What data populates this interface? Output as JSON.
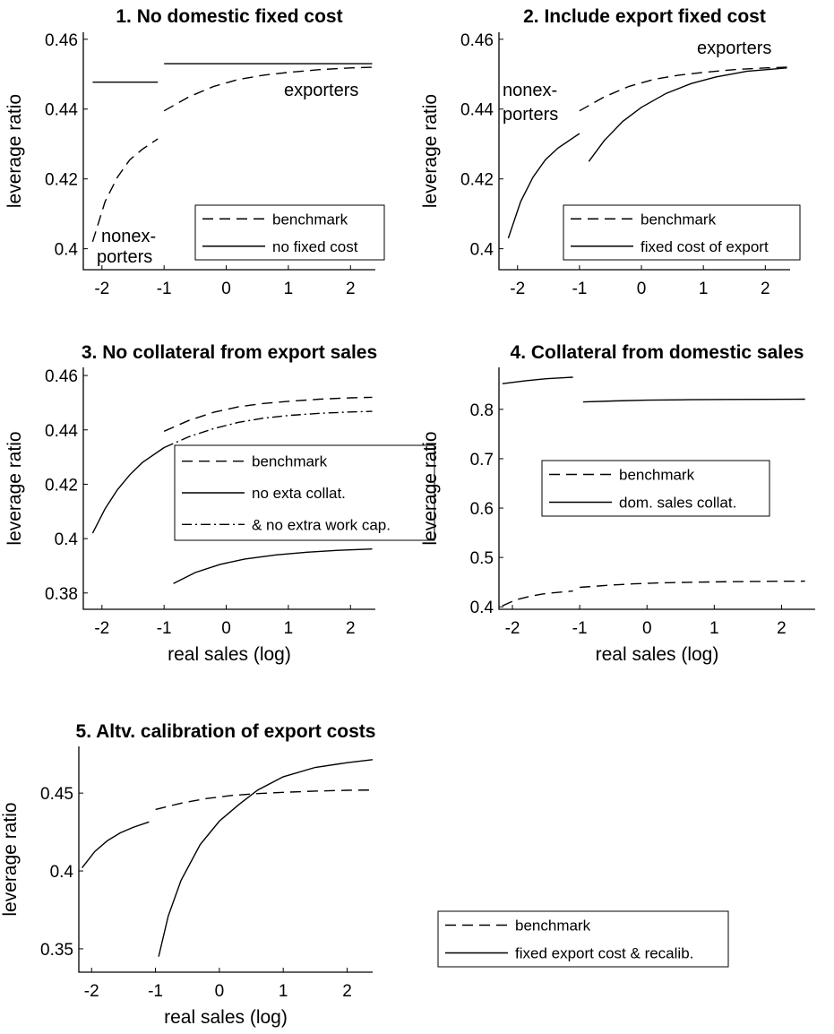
{
  "chart_data": [
    {
      "type": "line",
      "title": "1. No domestic fixed cost",
      "xlabel": "",
      "ylabel": "leverage ratio",
      "xlim": [
        -2.3,
        2.4
      ],
      "ylim": [
        0.394,
        0.462
      ],
      "xticks": [
        -2,
        -1,
        0,
        1,
        2
      ],
      "yticks": [
        0.4,
        0.42,
        0.44,
        0.46
      ],
      "ytick_labels": [
        "0.4",
        "0.42",
        "0.44",
        "0.46"
      ],
      "annotations": [
        {
          "text": "exporters",
          "x": 1.05,
          "y": 0.4415
        },
        {
          "text": "nonex-",
          "x": -1.9,
          "y": 0.4035
        },
        {
          "text": "porters",
          "x": -1.95,
          "y": 0.397
        }
      ],
      "legend": {
        "position": "lower-right",
        "entries": [
          "benchmark",
          "no fixed cost"
        ]
      },
      "series": [
        {
          "name": "benchmark",
          "style": "dashed",
          "segments": [
            {
              "x": [
                -2.15,
                -1.95,
                -1.75,
                -1.55,
                -1.35,
                -1.1
              ],
              "y": [
                0.402,
                0.4135,
                0.4205,
                0.4255,
                0.4285,
                0.4315
              ]
            },
            {
              "x": [
                -1.0,
                -0.6,
                -0.2,
                0.2,
                0.6,
                1.0,
                1.5,
                2.0,
                2.35
              ],
              "y": [
                0.4395,
                0.4435,
                0.4465,
                0.4485,
                0.4497,
                0.4505,
                0.4513,
                0.4518,
                0.452
              ]
            }
          ]
        },
        {
          "name": "no fixed cost",
          "style": "solid",
          "segments": [
            {
              "x": [
                -2.15,
                -1.1
              ],
              "y": [
                0.4477,
                0.4477
              ]
            },
            {
              "x": [
                -1.0,
                2.35
              ],
              "y": [
                0.453,
                0.453
              ]
            }
          ]
        }
      ]
    },
    {
      "type": "line",
      "title": "2. Include export fixed cost",
      "xlabel": "",
      "ylabel": "leverage ratio",
      "xlim": [
        -2.3,
        2.4
      ],
      "ylim": [
        0.394,
        0.462
      ],
      "xticks": [
        -2,
        -1,
        0,
        1,
        2
      ],
      "yticks": [
        0.4,
        0.42,
        0.44,
        0.46
      ],
      "ytick_labels": [
        "0.4",
        "0.42",
        "0.44",
        "0.46"
      ],
      "annotations": [
        {
          "text": "exporters",
          "x": 1.35,
          "y": 0.4558
        },
        {
          "text": "nonex-",
          "x": -1.85,
          "y": 0.4465
        },
        {
          "text": "porters",
          "x": -1.85,
          "y": 0.44
        }
      ],
      "legend": {
        "position": "lower-right",
        "entries": [
          "benchmark",
          "fixed cost of export"
        ]
      },
      "series": [
        {
          "name": "benchmark",
          "style": "dashed",
          "segments": [
            {
              "x": [
                -1.0,
                -0.6,
                -0.2,
                0.2,
                0.6,
                1.0,
                1.5,
                2.0,
                2.35
              ],
              "y": [
                0.4395,
                0.4435,
                0.4465,
                0.4485,
                0.4497,
                0.4505,
                0.4513,
                0.4518,
                0.452
              ]
            }
          ]
        },
        {
          "name": "fixed cost of export",
          "style": "solid",
          "segments": [
            {
              "x": [
                -2.15,
                -1.95,
                -1.75,
                -1.55,
                -1.35,
                -1.0
              ],
              "y": [
                0.403,
                0.4135,
                0.4205,
                0.4255,
                0.4288,
                0.433
              ]
            },
            {
              "x": [
                -0.85,
                -0.6,
                -0.3,
                0.0,
                0.4,
                0.8,
                1.2,
                1.7,
                2.35
              ],
              "y": [
                0.425,
                0.431,
                0.4365,
                0.4405,
                0.4445,
                0.4473,
                0.4492,
                0.4508,
                0.4518
              ]
            }
          ]
        }
      ]
    },
    {
      "type": "line",
      "title": "3. No collateral from export sales",
      "xlabel": "real sales (log)",
      "ylabel": "leverage ratio",
      "xlim": [
        -2.3,
        2.4
      ],
      "ylim": [
        0.374,
        0.463
      ],
      "xticks": [
        -2,
        -1,
        0,
        1,
        2
      ],
      "yticks": [
        0.38,
        0.4,
        0.42,
        0.44,
        0.46
      ],
      "ytick_labels": [
        "0.38",
        "0.4",
        "0.42",
        "0.44",
        "0.46"
      ],
      "legend": {
        "position": "right",
        "entries": [
          "benchmark",
          "no exta collat.",
          "& no extra work cap."
        ]
      },
      "series": [
        {
          "name": "benchmark",
          "style": "dashed",
          "segments": [
            {
              "x": [
                -1.0,
                -0.6,
                -0.2,
                0.2,
                0.6,
                1.0,
                1.5,
                2.0,
                2.35
              ],
              "y": [
                0.4395,
                0.4435,
                0.4465,
                0.4485,
                0.4497,
                0.4505,
                0.4513,
                0.4518,
                0.452
              ]
            }
          ]
        },
        {
          "name": "no exta collat.",
          "style": "solid",
          "segments": [
            {
              "x": [
                -2.15,
                -1.95,
                -1.75,
                -1.55,
                -1.35,
                -1.0
              ],
              "y": [
                0.402,
                0.411,
                0.418,
                0.4235,
                0.428,
                0.4335
              ]
            },
            {
              "x": [
                -0.85,
                -0.5,
                -0.1,
                0.3,
                0.8,
                1.3,
                1.8,
                2.35
              ],
              "y": [
                0.3835,
                0.3875,
                0.3905,
                0.3925,
                0.394,
                0.395,
                0.3957,
                0.3962
              ]
            }
          ]
        },
        {
          "name": "& no extra work cap.",
          "style": "dashdot",
          "segments": [
            {
              "x": [
                -1.0,
                -0.6,
                -0.2,
                0.2,
                0.6,
                1.0,
                1.5,
                2.0,
                2.35
              ],
              "y": [
                0.4335,
                0.4375,
                0.4405,
                0.4428,
                0.4443,
                0.4453,
                0.4461,
                0.4466,
                0.4468
              ]
            }
          ]
        }
      ]
    },
    {
      "type": "line",
      "title": "4. Collateral from domestic sales",
      "xlabel": "real sales (log)",
      "ylabel": "leverage ratio",
      "xlim": [
        -2.2,
        2.5
      ],
      "ylim": [
        0.395,
        0.885
      ],
      "xticks": [
        -2,
        -1,
        0,
        1,
        2
      ],
      "yticks": [
        0.4,
        0.5,
        0.6,
        0.7,
        0.8
      ],
      "ytick_labels": [
        "0.4",
        "0.5",
        "0.6",
        "0.7",
        "0.8"
      ],
      "legend": {
        "position": "center-left",
        "entries": [
          "benchmark",
          "dom. sales collat."
        ]
      },
      "series": [
        {
          "name": "benchmark",
          "style": "dashed",
          "segments": [
            {
              "x": [
                -2.15,
                -1.95,
                -1.75,
                -1.55,
                -1.35,
                -1.1
              ],
              "y": [
                0.402,
                0.414,
                0.421,
                0.426,
                0.429,
                0.432
              ]
            },
            {
              "x": [
                -1.0,
                -0.6,
                -0.2,
                0.2,
                0.6,
                1.0,
                1.5,
                2.0,
                2.35
              ],
              "y": [
                0.4395,
                0.4435,
                0.4465,
                0.4485,
                0.4497,
                0.4505,
                0.4513,
                0.4518,
                0.452
              ]
            }
          ]
        },
        {
          "name": "dom. sales collat.",
          "style": "solid",
          "segments": [
            {
              "x": [
                -2.15,
                -1.8,
                -1.5,
                -1.1
              ],
              "y": [
                0.852,
                0.858,
                0.862,
                0.865
              ]
            },
            {
              "x": [
                -0.95,
                -0.5,
                0.0,
                0.6,
                1.2,
                1.8,
                2.35
              ],
              "y": [
                0.815,
                0.817,
                0.8185,
                0.8195,
                0.82,
                0.8203,
                0.8205
              ]
            }
          ]
        }
      ]
    },
    {
      "type": "line",
      "title": "5. Altv. calibration of export costs",
      "xlabel": "real sales (log)",
      "ylabel": "leverage ratio",
      "xlim": [
        -2.2,
        2.4
      ],
      "ylim": [
        0.335,
        0.48
      ],
      "xticks": [
        -2,
        -1,
        0,
        1,
        2
      ],
      "yticks": [
        0.35,
        0.4,
        0.45
      ],
      "ytick_labels": [
        "0.35",
        "0.4",
        "0.45"
      ],
      "legend": {
        "position": "outside-right",
        "entries": [
          "benchmark",
          "fixed export cost & recalib."
        ]
      },
      "series": [
        {
          "name": "benchmark",
          "style": "dashed",
          "segments": [
            {
              "x": [
                -1.0,
                -0.6,
                -0.2,
                0.2,
                0.6,
                1.0,
                1.5,
                2.0,
                2.4
              ],
              "y": [
                0.4395,
                0.4435,
                0.4465,
                0.4485,
                0.4497,
                0.4505,
                0.4513,
                0.4518,
                0.452
              ]
            }
          ]
        },
        {
          "name": "fixed export cost & recalib.",
          "style": "solid",
          "segments": [
            {
              "x": [
                -2.15,
                -1.95,
                -1.75,
                -1.55,
                -1.35,
                -1.1
              ],
              "y": [
                0.402,
                0.4125,
                0.4195,
                0.4245,
                0.428,
                0.4315
              ]
            },
            {
              "x": [
                -0.95,
                -0.8,
                -0.6,
                -0.3,
                0.0,
                0.3,
                0.6,
                1.0,
                1.5,
                2.0,
                2.4
              ],
              "y": [
                0.345,
                0.371,
                0.394,
                0.417,
                0.432,
                0.4425,
                0.452,
                0.4605,
                0.4665,
                0.4695,
                0.4715
              ]
            }
          ]
        }
      ]
    }
  ]
}
